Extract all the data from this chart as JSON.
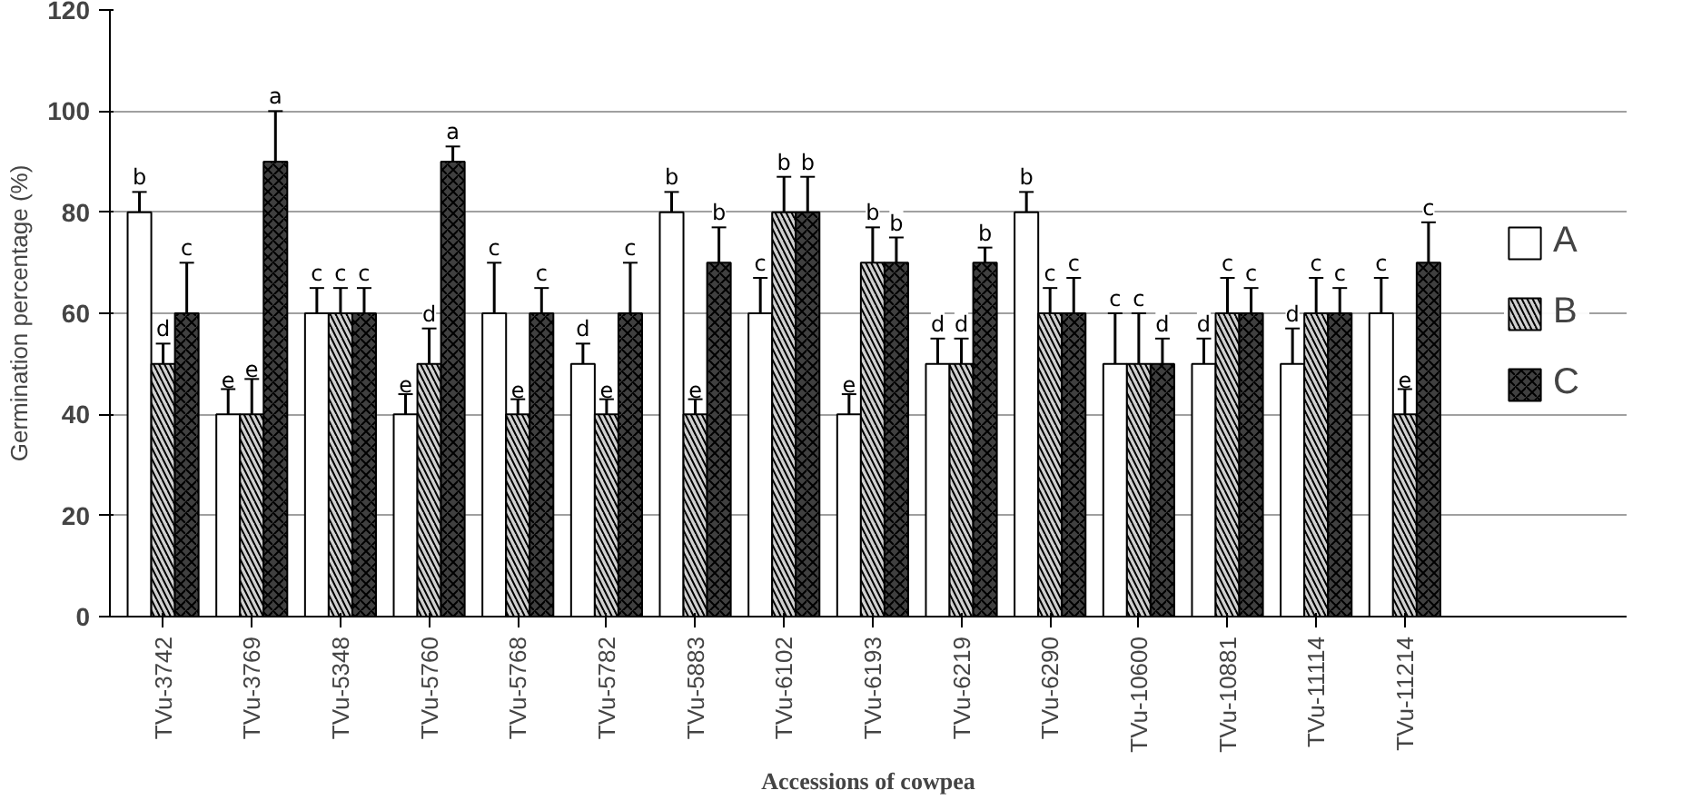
{
  "chart_data": {
    "type": "bar",
    "xlabel": "Accessions of cowpea",
    "ylabel": "Germination percentage (%)",
    "categories": [
      "TVu-3742",
      "TVu-3769",
      "TVu-5348",
      "TVu-5760",
      "TVu-5768",
      "TVu-5782",
      "TVu-5883",
      "TVu-6102",
      "TVu-6193",
      "TVu-6219",
      "TVu-6290",
      "TVu-10600",
      "TVu-10881",
      "TVu-11114",
      "TVu-11214"
    ],
    "series": [
      {
        "name": "A",
        "color": "#ffffff",
        "values": [
          80,
          40,
          60,
          40,
          60,
          50,
          80,
          60,
          40,
          50,
          80,
          50,
          50,
          50,
          60
        ],
        "errors": [
          4,
          5,
          5,
          4,
          10,
          4,
          4,
          7,
          4,
          5,
          4,
          10,
          5,
          7,
          7
        ]
      },
      {
        "name": "B",
        "color": "#d0d0d0",
        "values": [
          50,
          40,
          60,
          50,
          40,
          40,
          40,
          80,
          70,
          50,
          60,
          50,
          60,
          60,
          40
        ],
        "errors": [
          4,
          7,
          5,
          7,
          3,
          3,
          3,
          7,
          7,
          5,
          5,
          10,
          7,
          7,
          5
        ]
      },
      {
        "name": "C",
        "color": "#404040",
        "values": [
          60,
          90,
          60,
          90,
          60,
          60,
          70,
          80,
          70,
          70,
          60,
          50,
          60,
          60,
          70
        ],
        "errors": [
          10,
          10,
          5,
          3,
          5,
          10,
          7,
          7,
          5,
          3,
          7,
          5,
          5,
          5,
          8
        ]
      }
    ],
    "ylim": [
      0,
      120
    ],
    "yticks": [
      0,
      20,
      40,
      60,
      80,
      100,
      120
    ],
    "grid": "y",
    "legend": "right",
    "annotations": [
      "b",
      "d",
      "c",
      "e",
      "e",
      "a",
      "c",
      "c",
      "c",
      "e",
      "d",
      "a",
      "c",
      "e",
      "c",
      "d",
      "e",
      "c",
      "b",
      "e",
      "b",
      "c",
      "b",
      "b",
      "e",
      "b",
      "b",
      "d",
      "d",
      "b",
      "b",
      "c",
      "c",
      "c",
      "c",
      "d",
      "d",
      "c",
      "c",
      "d",
      "c",
      "c",
      "c",
      "e",
      "c"
    ]
  }
}
